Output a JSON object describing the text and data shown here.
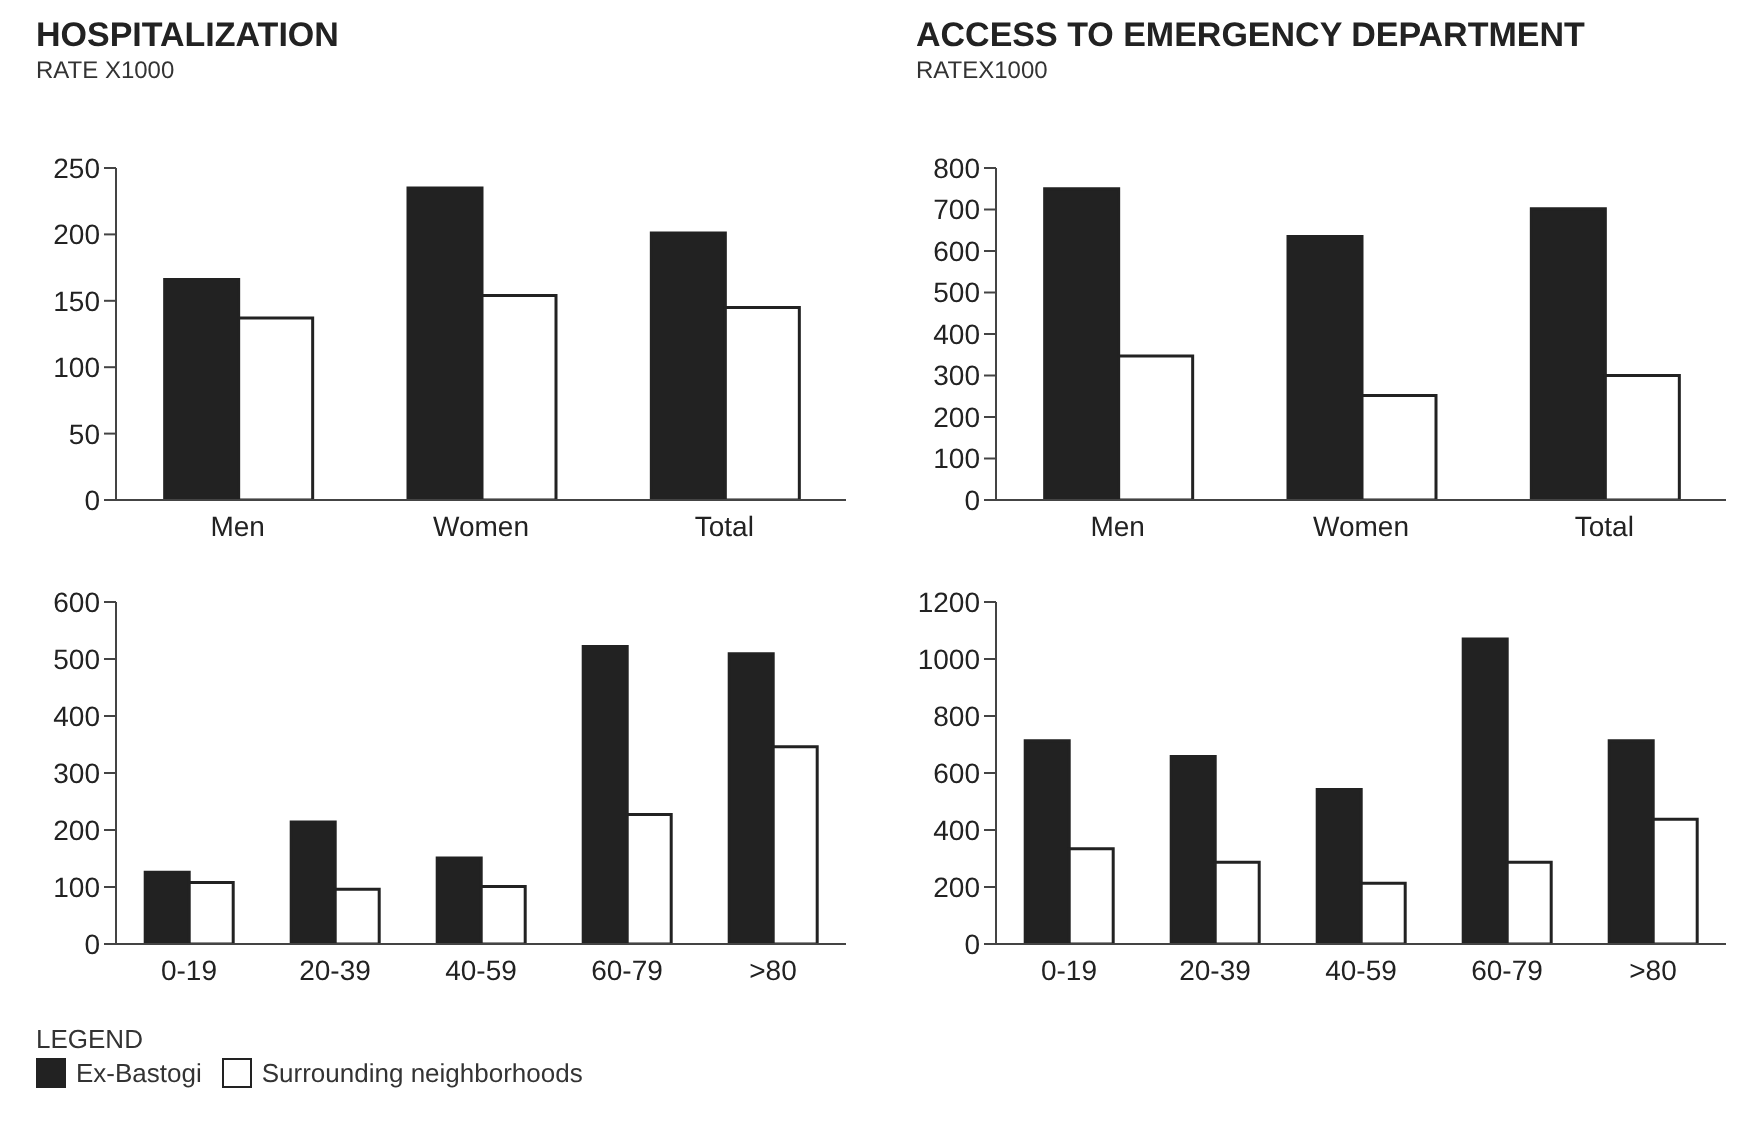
{
  "chart_data": [
    {
      "type": "bar",
      "title": "HOSPITALIZATION",
      "subtitle": "RATE X1000",
      "categories": [
        "Men",
        "Women",
        "Total"
      ],
      "series": [
        {
          "color": "#222222",
          "values": [
            166,
            235,
            201
          ]
        },
        {
          "color": "#ffffff",
          "values": [
            137,
            154,
            145
          ]
        }
      ],
      "ylim": [
        0,
        250
      ],
      "yticks": [
        0,
        50,
        100,
        150,
        200,
        250
      ],
      "grid": false
    },
    {
      "type": "bar",
      "title": "ACCESS TO EMERGENCY DEPARTMENT",
      "subtitle": "RATEX1000",
      "categories": [
        "Men",
        "Women",
        "Total"
      ],
      "series": [
        {
          "color": "#222222",
          "values": [
            750,
            635,
            702
          ]
        },
        {
          "color": "#ffffff",
          "values": [
            347,
            252,
            300
          ]
        }
      ],
      "ylim": [
        0,
        800
      ],
      "yticks": [
        0,
        100,
        200,
        300,
        400,
        500,
        600,
        700,
        800
      ],
      "grid": false
    },
    {
      "type": "bar",
      "categories": [
        "0-19",
        "20-39",
        "40-59",
        "60-79",
        ">80"
      ],
      "series": [
        {
          "name": "Ex-Bastogi",
          "color": "#222222",
          "values": [
            126,
            214,
            151,
            522,
            509
          ]
        },
        {
          "name": "Surrounding neighborhoods",
          "color": "#ffffff",
          "values": [
            108,
            96,
            101,
            227,
            346
          ]
        }
      ],
      "ylim": [
        0,
        600
      ],
      "yticks": [
        0,
        100,
        200,
        300,
        400,
        500,
        600
      ],
      "grid": false,
      "legend": "bottom left",
      "legend_title": "LEGEND"
    },
    {
      "type": "bar",
      "categories": [
        "0-19",
        "20-39",
        "40-59",
        "60-79",
        ">80"
      ],
      "series": [
        {
          "color": "#222222",
          "values": [
            713,
            658,
            542,
            1070,
            713
          ]
        },
        {
          "color": "#ffffff",
          "values": [
            334,
            287,
            213,
            287,
            438
          ]
        }
      ],
      "ylim": [
        0,
        1200
      ],
      "yticks": [
        0,
        200,
        400,
        600,
        800,
        1000,
        1200
      ],
      "grid": false
    }
  ]
}
